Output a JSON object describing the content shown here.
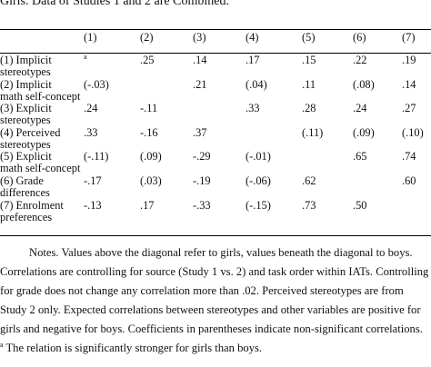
{
  "caption": "Girls. Data of Studies 1 and 2 are Combined.",
  "table": {
    "columns": [
      "",
      "(1)",
      "(2)",
      "(3)",
      "(4)",
      "(5)",
      "(6)",
      "(7)"
    ],
    "rows": [
      {
        "label": [
          "(1) Implicit",
          "stereotypes"
        ],
        "cells": [
          "",
          ".25",
          ".14",
          ".17",
          ".15",
          ".22",
          ".19"
        ],
        "sup": {
          "0": "a"
        }
      },
      {
        "label": [
          "(2) Implicit",
          "math self-concept"
        ],
        "cells": [
          "(-.03)",
          "",
          ".21",
          "(.04)",
          ".11",
          "(.08)",
          ".14"
        ]
      },
      {
        "label": [
          "(3) Explicit",
          "stereotypes"
        ],
        "cells": [
          ".24",
          "-.11",
          "",
          ".33",
          ".28",
          ".24",
          ".27"
        ]
      },
      {
        "label": [
          "(4) Perceived",
          "stereotypes"
        ],
        "cells": [
          ".33",
          "-.16",
          ".37",
          "",
          "(.11)",
          "(.09)",
          "(.10)"
        ]
      },
      {
        "label": [
          "(5) Explicit",
          "math self-concept"
        ],
        "cells": [
          "(-.11)",
          "(.09)",
          "-.29",
          "(-.01)",
          "",
          ".65",
          ".74"
        ]
      },
      {
        "label": [
          "(6) Grade",
          "differences"
        ],
        "cells": [
          "-.17",
          "(.03)",
          "-.19",
          "(-.06)",
          ".62",
          "",
          ".60"
        ]
      },
      {
        "label": [
          "(7) Enrolment",
          "preferences"
        ],
        "cells": [
          "-.13",
          ".17",
          "-.33",
          "(-.15)",
          ".73",
          ".50",
          ""
        ]
      }
    ]
  },
  "notes": [
    "Notes. Values above the diagonal refer to girls, values beneath the diagonal to boys.",
    "Correlations are controlling for source (Study 1 vs. 2) and task order within IATs. Controlling",
    "for grade does not change any correlation more than .02. Perceived stereotypes are from",
    "Study 2 only. Expected correlations between stereotypes and other variables are positive for",
    "girls and negative for boys. Coefficients in parentheses indicate non-significant correlations."
  ],
  "footnote": {
    "marker": "a",
    "text": " The relation is significantly stronger for girls than boys."
  }
}
